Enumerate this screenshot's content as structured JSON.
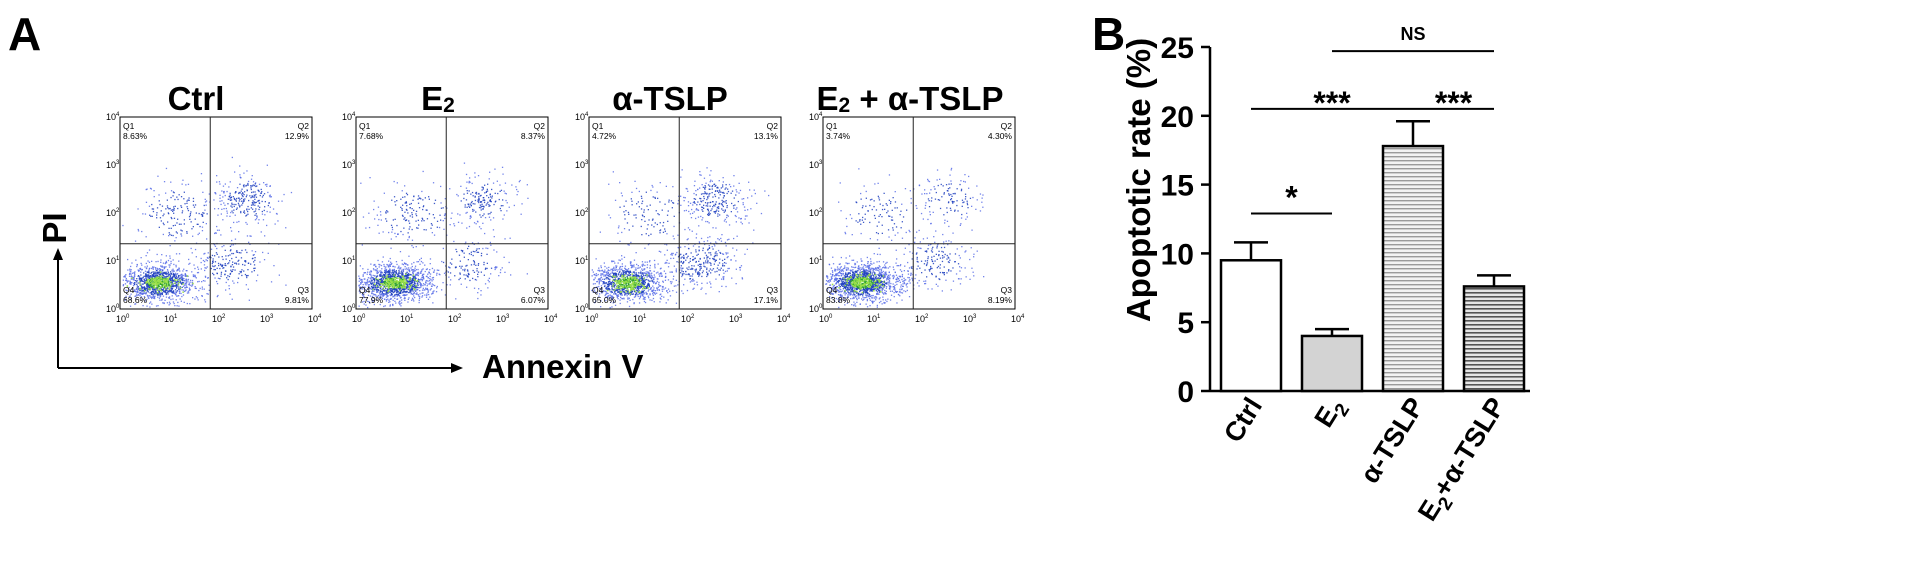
{
  "panel_a": {
    "letter": "A",
    "x_axis_label": "Annexin V",
    "y_axis_label": "PI",
    "plots": [
      {
        "title": "Ctrl",
        "title_sub": "",
        "title_suffix": "",
        "q1_label": "Q1",
        "q1": "8.63%",
        "q2_label": "Q2",
        "q2": "12.9%",
        "q3_label": "Q3",
        "q3": "9.81%",
        "q4_label": "Q4",
        "q4": "68.6%",
        "density": {
          "lower_left": 0.686,
          "lower_right": 0.098,
          "upper_left": 0.086,
          "upper_right": 0.129
        }
      },
      {
        "title": "E",
        "title_sub": "2",
        "title_suffix": "",
        "q1_label": "Q1",
        "q1": "7.68%",
        "q2_label": "Q2",
        "q2": "8.37%",
        "q3_label": "Q3",
        "q3": "6.07%",
        "q4_label": "Q4",
        "q4": "77.9%",
        "density": {
          "lower_left": 0.779,
          "lower_right": 0.061,
          "upper_left": 0.077,
          "upper_right": 0.084
        }
      },
      {
        "title": "α-TSLP",
        "title_sub": "",
        "title_suffix": "",
        "q1_label": "Q1",
        "q1": "4.72%",
        "q2_label": "Q2",
        "q2": "13.1%",
        "q3_label": "Q3",
        "q3": "17.1%",
        "q4_label": "Q4",
        "q4": "65.0%",
        "density": {
          "lower_left": 0.65,
          "lower_right": 0.171,
          "upper_left": 0.047,
          "upper_right": 0.131
        }
      },
      {
        "title": "E",
        "title_sub": "2",
        "title_suffix": " + α-TSLP",
        "q1_label": "Q1",
        "q1": "3.74%",
        "q2_label": "Q2",
        "q2": "4.30%",
        "q3_label": "Q3",
        "q3": "8.19%",
        "q4_label": "Q4",
        "q4": "83.8%",
        "density": {
          "lower_left": 0.838,
          "lower_right": 0.082,
          "upper_left": 0.037,
          "upper_right": 0.043
        }
      }
    ],
    "decade_base": "10",
    "decade_exponents": [
      "0",
      "1",
      "2",
      "3",
      "4"
    ],
    "colors": {
      "scatter_dense": "#2ca02c",
      "scatter_mid": "#1f3fbf",
      "scatter_sparse": "#5a6ee8",
      "core": "#9be04a"
    }
  },
  "chart_data": {
    "type": "bar",
    "letter": "B",
    "categories": [
      "Ctrl",
      "E2",
      "α-TSLP",
      "E2+α-TSLP"
    ],
    "category_labels": [
      {
        "main": "Ctrl",
        "sub": "",
        "suffix": ""
      },
      {
        "main": "E",
        "sub": "2",
        "suffix": ""
      },
      {
        "main": "α-TSLP",
        "sub": "",
        "suffix": ""
      },
      {
        "main": "E",
        "sub": "2",
        "suffix": "+α-TSLP"
      }
    ],
    "values": [
      9.5,
      4.0,
      17.8,
      7.6
    ],
    "errors": [
      1.3,
      0.5,
      1.8,
      0.8
    ],
    "fills": [
      "white",
      "light-grey",
      "horizontal-stripes-light",
      "horizontal-stripes-dark"
    ],
    "ylabel": "Apoptotic rate (%)",
    "xlabel": "",
    "ylim": [
      0,
      25
    ],
    "yticks": [
      "0",
      "5",
      "10",
      "15",
      "20",
      "25"
    ],
    "grid": false,
    "significance": [
      {
        "from": 0,
        "to": 1,
        "label": "*",
        "y": 12.9
      },
      {
        "from": 0,
        "to": 2,
        "label": "***",
        "y": 20.5
      },
      {
        "from": 2,
        "to": 3,
        "label": "***",
        "y": 20.5
      },
      {
        "from": 1,
        "to": 3,
        "label": "NS",
        "y": 24.7
      }
    ]
  }
}
